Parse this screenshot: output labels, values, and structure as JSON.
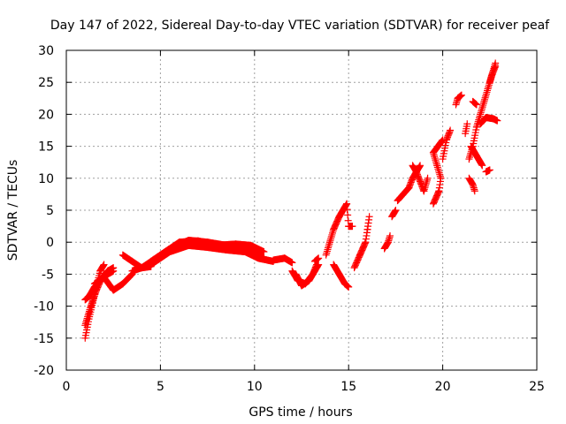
{
  "chart_data": {
    "type": "scatter",
    "title": "Day 147 of 2022, Sidereal Day-to-day VTEC variation (SDTVAR) for receiver peaf",
    "xlabel": "GPS time / hours",
    "ylabel": "SDTVAR / TECUs",
    "xlim": [
      0,
      25
    ],
    "ylim": [
      -20,
      30
    ],
    "xticks": [
      0,
      5,
      10,
      15,
      20,
      25
    ],
    "yticks": [
      -20,
      -15,
      -10,
      -5,
      0,
      5,
      10,
      15,
      20,
      25,
      30
    ],
    "xtick_labels": [
      "0",
      "5",
      "10",
      "15",
      "20",
      "25"
    ],
    "ytick_labels": [
      "-20",
      "-15",
      "-10",
      "-5",
      "0",
      "5",
      "10",
      "15",
      "20",
      "25",
      "30"
    ],
    "grid": true,
    "marker": "+",
    "series_color": "#ff0000",
    "curves": [
      [
        [
          1.0,
          -15
        ],
        [
          1.2,
          -12
        ],
        [
          1.4,
          -9.5
        ],
        [
          1.6,
          -7
        ],
        [
          1.8,
          -4.5
        ],
        [
          2.0,
          -3.5
        ]
      ],
      [
        [
          1.0,
          -13
        ],
        [
          1.3,
          -10
        ],
        [
          1.6,
          -7.5
        ],
        [
          1.9,
          -5.5
        ],
        [
          2.2,
          -4.5
        ],
        [
          2.5,
          -4
        ]
      ],
      [
        [
          1.0,
          -9
        ],
        [
          1.2,
          -8.5
        ],
        [
          1.5,
          -7
        ],
        [
          1.8,
          -6
        ],
        [
          2.2,
          -5
        ],
        [
          2.5,
          -4.5
        ]
      ],
      [
        [
          1.5,
          -6.5
        ],
        [
          2.0,
          -5.5
        ],
        [
          2.5,
          -7.5
        ],
        [
          3.0,
          -6.5
        ],
        [
          3.5,
          -5
        ]
      ],
      [
        [
          3.0,
          -2
        ],
        [
          3.5,
          -3
        ],
        [
          4.0,
          -4
        ],
        [
          4.5,
          -3.8
        ]
      ],
      [
        [
          3.5,
          -4.5
        ],
        [
          4.5,
          -3.5
        ],
        [
          5.5,
          -1.5
        ],
        [
          6.5,
          -0.5
        ],
        [
          7.5,
          -0.8
        ],
        [
          8.5,
          -1.2
        ],
        [
          9.5,
          -1.5
        ],
        [
          10.2,
          -2.5
        ],
        [
          11,
          -3
        ]
      ],
      [
        [
          4.0,
          -4
        ],
        [
          5.0,
          -2
        ],
        [
          6.0,
          0
        ],
        [
          7.0,
          0.2
        ],
        [
          8.0,
          -0.5
        ],
        [
          9.0,
          -0.3
        ],
        [
          9.8,
          -0.5
        ],
        [
          10.5,
          -1.5
        ]
      ],
      [
        [
          4.5,
          -3
        ],
        [
          5.5,
          -1
        ],
        [
          6.5,
          0.3
        ],
        [
          7.5,
          0
        ],
        [
          8.5,
          -0.5
        ],
        [
          9.5,
          -0.5
        ],
        [
          10.5,
          -2.5
        ]
      ],
      [
        [
          11.0,
          -2.8
        ],
        [
          11.6,
          -2.5
        ],
        [
          12.0,
          -3.2
        ]
      ],
      [
        [
          12.0,
          -4.5
        ],
        [
          12.3,
          -6
        ],
        [
          12.7,
          -6.5
        ],
        [
          13.1,
          -5
        ],
        [
          13.3,
          -3.5
        ]
      ],
      [
        [
          12.2,
          -5
        ],
        [
          12.5,
          -6.8
        ],
        [
          12.9,
          -6
        ],
        [
          13.2,
          -4.5
        ],
        [
          13.4,
          -3.5
        ]
      ],
      [
        [
          13.2,
          -3
        ],
        [
          13.4,
          -2.5
        ]
      ],
      [
        [
          13.8,
          -2
        ],
        [
          14.0,
          0
        ],
        [
          14.2,
          2
        ],
        [
          14.5,
          4
        ],
        [
          14.9,
          6
        ],
        [
          15.0,
          2.5
        ],
        [
          15.2,
          2.5
        ]
      ],
      [
        [
          14.2,
          -3.5
        ],
        [
          14.5,
          -5
        ],
        [
          14.8,
          -6.5
        ],
        [
          15.0,
          -7
        ]
      ],
      [
        [
          15.3,
          -4
        ],
        [
          15.6,
          -2
        ],
        [
          15.9,
          0
        ],
        [
          16.0,
          2
        ],
        [
          16.1,
          4
        ]
      ],
      [
        [
          16.9,
          -1
        ],
        [
          17.1,
          0
        ],
        [
          17.2,
          1
        ]
      ],
      [
        [
          17.3,
          4
        ],
        [
          17.5,
          5
        ]
      ],
      [
        [
          17.6,
          6.5
        ],
        [
          17.9,
          7.5
        ],
        [
          18.2,
          8.5
        ],
        [
          18.4,
          10
        ],
        [
          18.8,
          12
        ]
      ],
      [
        [
          18.4,
          12
        ],
        [
          18.6,
          11
        ],
        [
          18.8,
          9.5
        ],
        [
          19.0,
          8
        ],
        [
          19.2,
          10
        ]
      ],
      [
        [
          19.5,
          6
        ],
        [
          19.8,
          8
        ],
        [
          19.9,
          10
        ],
        [
          19.7,
          12
        ],
        [
          19.5,
          14
        ],
        [
          20.0,
          16
        ]
      ],
      [
        [
          20.0,
          13
        ],
        [
          20.2,
          16
        ],
        [
          20.4,
          17.5
        ]
      ],
      [
        [
          20.7,
          21.5
        ],
        [
          20.8,
          22.5
        ],
        [
          21.0,
          23
        ]
      ],
      [
        [
          21.2,
          17
        ],
        [
          21.3,
          18.5
        ]
      ],
      [
        [
          21.6,
          22
        ],
        [
          21.8,
          21.5
        ]
      ],
      [
        [
          21.4,
          13
        ],
        [
          21.6,
          15
        ],
        [
          21.8,
          18
        ],
        [
          22.0,
          20
        ],
        [
          22.2,
          22
        ],
        [
          22.4,
          24
        ],
        [
          22.6,
          26
        ],
        [
          22.8,
          27.5
        ]
      ],
      [
        [
          21.4,
          10
        ],
        [
          21.6,
          9
        ],
        [
          21.7,
          8
        ]
      ],
      [
        [
          21.5,
          15
        ],
        [
          21.8,
          13.5
        ],
        [
          22.1,
          12
        ]
      ],
      [
        [
          22.0,
          18.5
        ],
        [
          22.3,
          19.5
        ],
        [
          22.7,
          19.3
        ],
        [
          22.9,
          19
        ]
      ],
      [
        [
          22.3,
          11
        ],
        [
          22.5,
          11.3
        ]
      ],
      [
        [
          22.5,
          25
        ],
        [
          22.8,
          28
        ]
      ]
    ]
  }
}
